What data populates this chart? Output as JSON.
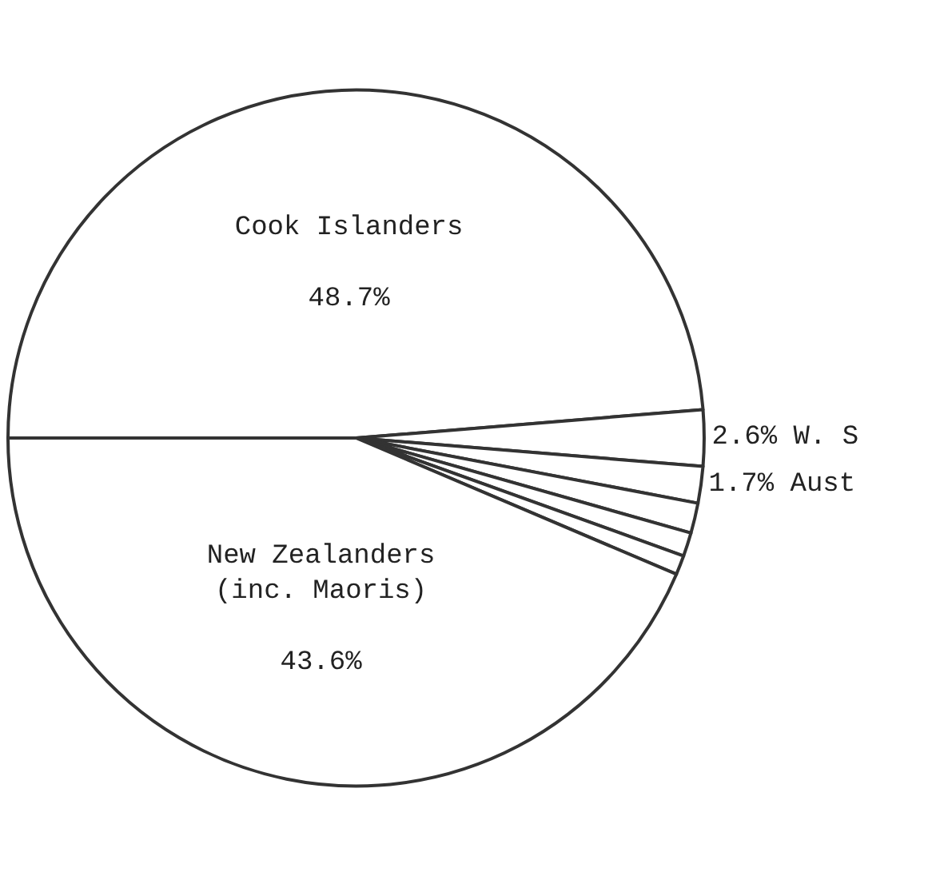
{
  "chart_data": {
    "type": "pie",
    "categories": [
      "Cook Islanders",
      "W. S",
      "Aust",
      null,
      null,
      null,
      "New Zealanders\n(inc. Maoris)"
    ],
    "values": [
      48.7,
      2.6,
      1.7,
      1.4,
      1.1,
      0.9,
      43.6
    ],
    "value_labels": [
      "48.7%",
      "2.6%",
      "1.7%",
      null,
      null,
      null,
      "43.6%"
    ],
    "colors": [
      "#ffffff",
      "#ffffff",
      "#ffffff",
      "#ffffff",
      "#ffffff",
      "#ffffff",
      "#ffffff"
    ]
  }
}
